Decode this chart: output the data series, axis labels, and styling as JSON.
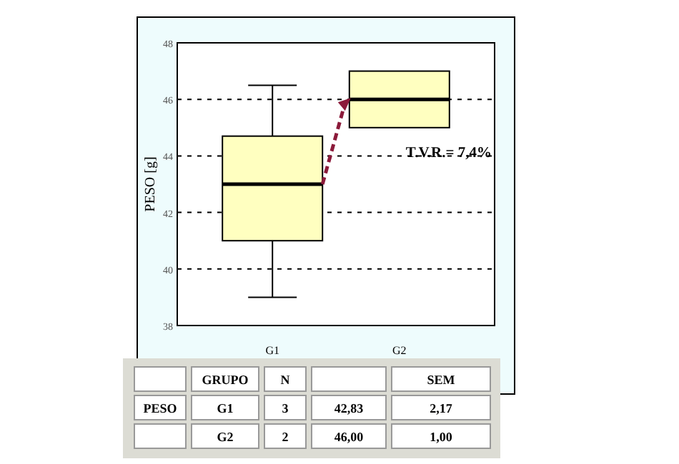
{
  "chart_data": {
    "type": "box",
    "ylabel": "PESO [g]",
    "categories": [
      "G1",
      "G2"
    ],
    "boxes": [
      {
        "low": 39,
        "q1": 41,
        "median": 43,
        "q3": 44.7,
        "high": 46.5
      },
      {
        "low": 45,
        "q1": 45,
        "median": 46,
        "q3": 47,
        "high": 47
      }
    ],
    "color": "#ffffc0",
    "ylim": [
      38,
      48
    ],
    "yticks": [
      38,
      40,
      42,
      44,
      46,
      48
    ],
    "grid": "y",
    "annotations": [
      "T.V.R.= 7,4%",
      "GRUPO",
      "N",
      "SEM",
      "PESO",
      "G1",
      "3",
      "42,83",
      "2,17",
      "G2",
      "2",
      "46,00",
      "1,00"
    ]
  }
}
